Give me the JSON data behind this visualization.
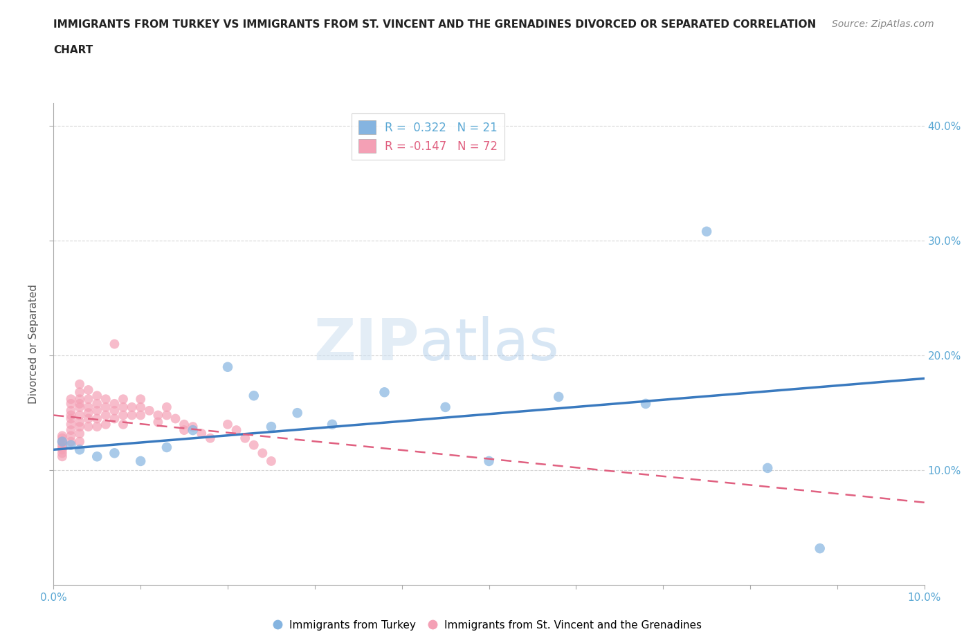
{
  "title_line1": "IMMIGRANTS FROM TURKEY VS IMMIGRANTS FROM ST. VINCENT AND THE GRENADINES DIVORCED OR SEPARATED CORRELATION",
  "title_line2": "CHART",
  "source": "Source: ZipAtlas.com",
  "ylabel": "Divorced or Separated",
  "xlim": [
    0.0,
    0.1
  ],
  "ylim": [
    0.0,
    0.42
  ],
  "xticks": [
    0.0,
    0.01,
    0.02,
    0.03,
    0.04,
    0.05,
    0.06,
    0.07,
    0.08,
    0.09,
    0.1
  ],
  "yticks": [
    0.1,
    0.2,
    0.3,
    0.4
  ],
  "grid_color": "#cccccc",
  "watermark_zip": "ZIP",
  "watermark_atlas": "atlas",
  "blue_R": "0.322",
  "blue_N": "21",
  "pink_R": "-0.147",
  "pink_N": "72",
  "blue_color": "#85b4e0",
  "pink_color": "#f4a0b5",
  "blue_line_color": "#3a7abf",
  "pink_line_color": "#e06080",
  "blue_label": "Immigrants from Turkey",
  "pink_label": "Immigrants from St. Vincent and the Grenadines",
  "tick_color": "#5ba8d4",
  "blue_scatter_x": [
    0.001,
    0.002,
    0.003,
    0.005,
    0.007,
    0.01,
    0.013,
    0.016,
    0.02,
    0.023,
    0.025,
    0.028,
    0.032,
    0.038,
    0.045,
    0.05,
    0.058,
    0.068,
    0.075,
    0.082,
    0.088
  ],
  "blue_scatter_y": [
    0.125,
    0.122,
    0.118,
    0.112,
    0.115,
    0.108,
    0.12,
    0.135,
    0.19,
    0.165,
    0.138,
    0.15,
    0.14,
    0.168,
    0.155,
    0.108,
    0.164,
    0.158,
    0.308,
    0.102,
    0.032
  ],
  "pink_scatter_x": [
    0.001,
    0.001,
    0.001,
    0.001,
    0.001,
    0.001,
    0.001,
    0.001,
    0.002,
    0.002,
    0.002,
    0.002,
    0.002,
    0.002,
    0.002,
    0.002,
    0.002,
    0.003,
    0.003,
    0.003,
    0.003,
    0.003,
    0.003,
    0.003,
    0.003,
    0.003,
    0.003,
    0.004,
    0.004,
    0.004,
    0.004,
    0.004,
    0.004,
    0.005,
    0.005,
    0.005,
    0.005,
    0.005,
    0.006,
    0.006,
    0.006,
    0.006,
    0.007,
    0.007,
    0.007,
    0.007,
    0.008,
    0.008,
    0.008,
    0.008,
    0.009,
    0.009,
    0.01,
    0.01,
    0.01,
    0.011,
    0.012,
    0.012,
    0.013,
    0.013,
    0.014,
    0.015,
    0.015,
    0.016,
    0.017,
    0.018,
    0.02,
    0.021,
    0.022,
    0.023,
    0.024,
    0.025
  ],
  "pink_scatter_y": [
    0.13,
    0.128,
    0.125,
    0.122,
    0.12,
    0.118,
    0.115,
    0.112,
    0.162,
    0.158,
    0.152,
    0.148,
    0.145,
    0.14,
    0.135,
    0.13,
    0.125,
    0.175,
    0.168,
    0.162,
    0.158,
    0.155,
    0.148,
    0.142,
    0.138,
    0.132,
    0.125,
    0.17,
    0.162,
    0.155,
    0.15,
    0.145,
    0.138,
    0.165,
    0.158,
    0.152,
    0.145,
    0.138,
    0.162,
    0.155,
    0.148,
    0.14,
    0.158,
    0.152,
    0.145,
    0.21,
    0.162,
    0.155,
    0.148,
    0.14,
    0.155,
    0.148,
    0.162,
    0.155,
    0.148,
    0.152,
    0.148,
    0.142,
    0.155,
    0.148,
    0.145,
    0.14,
    0.135,
    0.138,
    0.132,
    0.128,
    0.14,
    0.135,
    0.128,
    0.122,
    0.115,
    0.108
  ],
  "blue_trend_x": [
    0.0,
    0.1
  ],
  "blue_trend_y": [
    0.118,
    0.18
  ],
  "pink_trend_x": [
    0.0,
    0.1
  ],
  "pink_trend_y": [
    0.148,
    0.072
  ]
}
